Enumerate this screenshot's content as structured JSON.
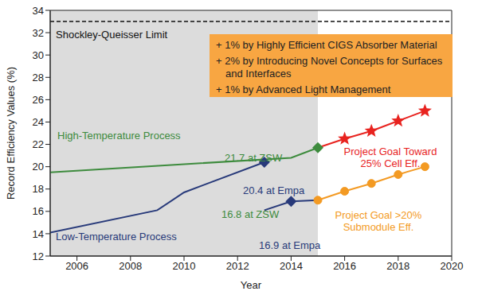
{
  "chart_data": {
    "type": "line",
    "x_label": "Year",
    "y_label": "Record Efficiency Values (%)",
    "xlim": [
      2005,
      2020
    ],
    "xticks": [
      2006,
      2008,
      2010,
      2012,
      2014,
      2016,
      2018,
      2020
    ],
    "ylim": [
      12,
      34
    ],
    "yticks": [
      12,
      14,
      16,
      18,
      20,
      22,
      24,
      26,
      28,
      30,
      32,
      34
    ],
    "grid": false,
    "shaded_region": [
      2005,
      2015
    ],
    "series": [
      {
        "name": "Shockley-Queisser Limit",
        "color": "#111111",
        "line_style": "dashed",
        "marker": "none",
        "x": [
          2005,
          2020
        ],
        "values": [
          33,
          33
        ]
      },
      {
        "name": "Project Goal Toward 25% Cell Eff.",
        "color": "#e8231f",
        "line_style": "solid",
        "marker": "star_except_first",
        "x": [
          2015,
          2016,
          2017,
          2018,
          2019
        ],
        "values": [
          21.7,
          22.5,
          23.2,
          24.1,
          25.0
        ]
      },
      {
        "name": "Project Goal >20% Submodule Eff.",
        "color": "#f39a23",
        "line_style": "solid",
        "marker": "circle",
        "x": [
          2015,
          2016,
          2017,
          2018,
          2019
        ],
        "values": [
          17.0,
          17.8,
          18.5,
          19.3,
          20.0
        ]
      },
      {
        "name": "High-Temperature Process",
        "color": "#3d8b3d",
        "line_style": "solid",
        "marker": "diamond_last",
        "x": [
          2005,
          2014,
          2015
        ],
        "values": [
          19.5,
          20.8,
          21.7
        ]
      },
      {
        "name": "Low-Temperature Process",
        "color": "#283a7a",
        "line_style": "solid",
        "marker": "diamond_last",
        "x": [
          2005,
          2009,
          2010,
          2013
        ],
        "values": [
          14.1,
          16.1,
          17.7,
          20.4
        ]
      },
      {
        "color": "#283a7a",
        "line_style": "solid",
        "marker": "diamond_last",
        "x": [
          2013,
          2014
        ],
        "values": [
          16.1,
          16.9
        ]
      },
      {
        "color": "#283a7a",
        "line_style": "solid",
        "marker": "none",
        "x": [
          2014,
          2015
        ],
        "values": [
          16.9,
          17.0
        ]
      }
    ],
    "annotations": [
      {
        "text": "21.7 at ZSW",
        "color": "#3d8b3d"
      },
      {
        "text": "20.4 at Empa",
        "color": "#283a7a"
      },
      {
        "text": "16.8 at ZSW",
        "color": "#3d8b3d"
      },
      {
        "text": "16.9 at Empa",
        "color": "#283a7a"
      }
    ],
    "notes": {
      "color": "#f8a642",
      "lines": [
        "+ 1% by Highly Efficient CIGS Absorber Material",
        "+ 2% by Introducing Novel Concepts for Surfaces and Interfaces",
        "+ 1% by Advanced Light Management"
      ]
    }
  }
}
